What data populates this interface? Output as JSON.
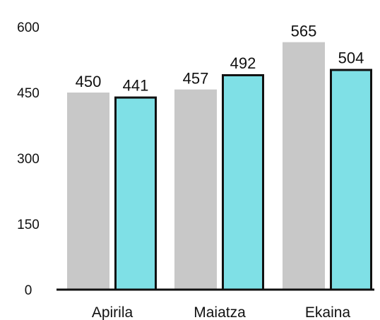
{
  "chart_data": {
    "type": "bar",
    "categories": [
      "Apirila",
      "Maiatza",
      "Ekaina"
    ],
    "series": [
      {
        "values": [
          450,
          457,
          565
        ],
        "color": "#c8c8c8"
      },
      {
        "values": [
          441,
          492,
          504
        ],
        "color": "#7fe0e6",
        "outline": "#111111"
      }
    ],
    "yticks": [
      0,
      150,
      300,
      450,
      600
    ],
    "ylim": [
      0,
      600
    ],
    "grid": false,
    "data_labels": true
  }
}
